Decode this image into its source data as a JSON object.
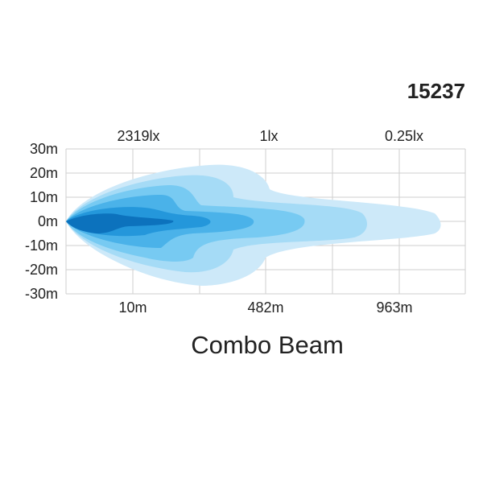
{
  "model": "15237",
  "lux_labels": [
    "2319lx",
    "1lx",
    "0.25lx"
  ],
  "y_labels": [
    "30m",
    "20m",
    "10m",
    "0m",
    "-10m",
    "-20m",
    "-30m"
  ],
  "distance_labels": [
    "10m",
    "482m",
    "963m"
  ],
  "title": "Combo Beam"
}
